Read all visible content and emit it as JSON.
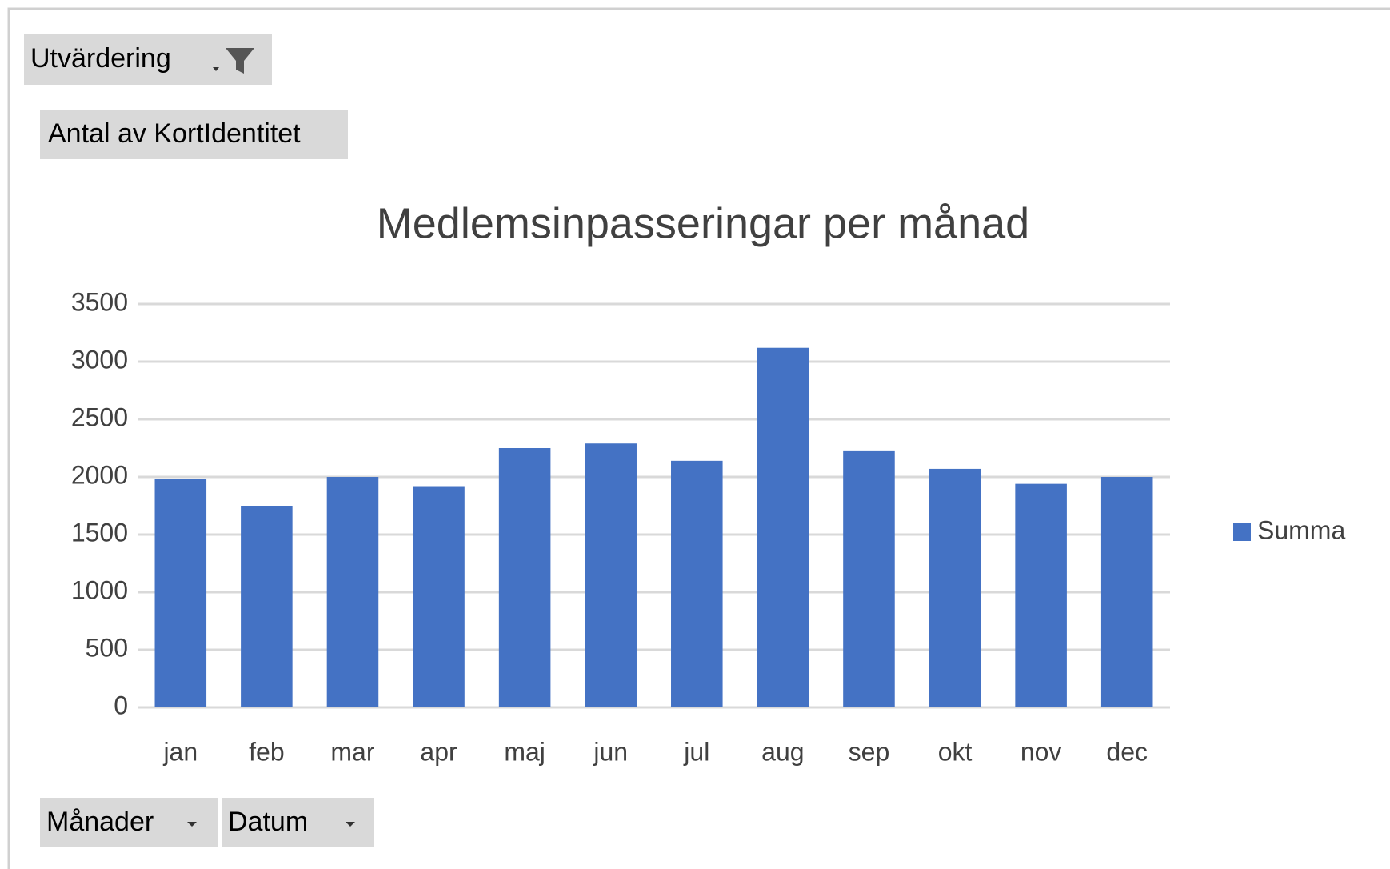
{
  "chart_data": {
    "type": "bar",
    "title": "Medlemsinpasseringar per månad",
    "categories": [
      "jan",
      "feb",
      "mar",
      "apr",
      "maj",
      "jun",
      "jul",
      "aug",
      "sep",
      "okt",
      "nov",
      "dec"
    ],
    "series": [
      {
        "name": "Summa",
        "color": "#4472c4",
        "values": [
          1980,
          1750,
          2000,
          1920,
          2250,
          2290,
          2140,
          3120,
          2230,
          2070,
          1940,
          2000
        ]
      }
    ],
    "ylim": [
      0,
      3500
    ],
    "yticks": [
      0,
      500,
      1000,
      1500,
      2000,
      2500,
      3000,
      3500
    ],
    "grid": true,
    "legend": "right"
  },
  "pivot_buttons": {
    "filter": "Utvärdering",
    "value": "Antal av KortIdentitet",
    "axis": [
      "Månader",
      "Datum"
    ]
  }
}
